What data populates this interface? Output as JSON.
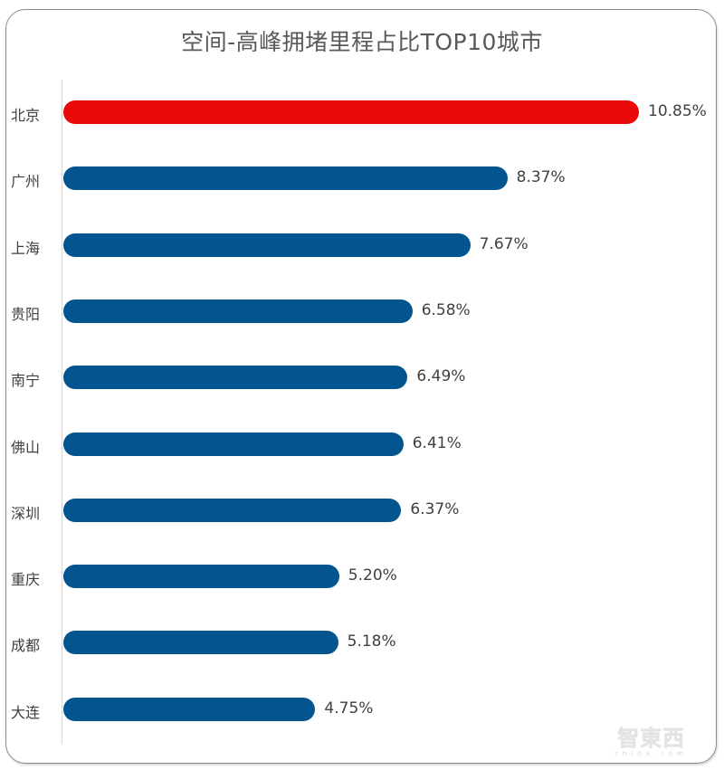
{
  "chart_data": {
    "type": "bar",
    "orientation": "horizontal",
    "title": "空间-高峰拥堵里程占比TOP10城市",
    "xlabel": "",
    "ylabel": "",
    "categories": [
      "北京",
      "广州",
      "上海",
      "贵阳",
      "南宁",
      "佛山",
      "深圳",
      "重庆",
      "成都",
      "大连"
    ],
    "values": [
      10.85,
      8.37,
      7.67,
      6.58,
      6.49,
      6.41,
      6.37,
      5.2,
      5.18,
      4.75
    ],
    "value_labels": [
      "10.85%",
      "8.37%",
      "7.67%",
      "6.58%",
      "6.49%",
      "6.41%",
      "6.37%",
      "5.20%",
      "5.18%",
      "4.75%"
    ],
    "unit": "%",
    "xlim": [
      0,
      10.85
    ],
    "grid": false,
    "legend": null,
    "highlight_index": 0,
    "colors": {
      "highlight": "#ea0a0a",
      "default": "#03558f"
    }
  },
  "watermark": {
    "main": "智東西",
    "sub": "zhidx.com"
  }
}
